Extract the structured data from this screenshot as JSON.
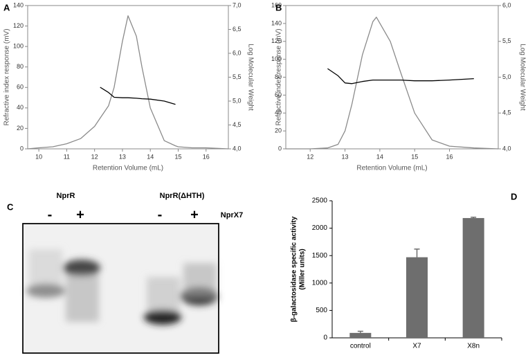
{
  "chart_data": [
    {
      "type": "line",
      "panel": "A",
      "x_label": "Retention Volume (mL)",
      "y_label": "Refractive index response (mV)",
      "y2_label": "Log Molecular Weight",
      "x": [
        9.6,
        10,
        10.5,
        11,
        11.5,
        12,
        12.2,
        12.5,
        12.7,
        13,
        13.2,
        13.5,
        13.7,
        14,
        14.5,
        14.9,
        15,
        15.5,
        16,
        16.8
      ],
      "series": [
        {
          "color": "#8a8a8a",
          "values": [
            0,
            1,
            2,
            5,
            10,
            22,
            30,
            42,
            60,
            105,
            130,
            110,
            80,
            40,
            8,
            3,
            2,
            1,
            1,
            0
          ]
        },
        {
          "color": "#000000",
          "axis": "y2",
          "values": [
            null,
            null,
            null,
            null,
            null,
            null,
            5.29,
            5.18,
            5.08,
            5.07,
            5.07,
            5.06,
            5.05,
            5.04,
            5.0,
            4.93,
            null,
            null,
            null,
            null
          ]
        }
      ],
      "xlim": [
        9.6,
        16.8
      ],
      "xticks": [
        10,
        11,
        12,
        13,
        14,
        15,
        16
      ],
      "ylim": [
        0,
        140
      ],
      "yticks": [
        0,
        20,
        40,
        60,
        80,
        100,
        120,
        140
      ],
      "y2lim": [
        4.0,
        7.0
      ],
      "y2ticks": [
        {
          "value": 4.0,
          "label": "4,0"
        },
        {
          "value": 4.5,
          "label": "4,5"
        },
        {
          "value": 5.0,
          "label": "5,0"
        },
        {
          "value": 5.5,
          "label": "5,5"
        },
        {
          "value": 6.0,
          "label": "6,0"
        },
        {
          "value": 6.5,
          "label": "6,5"
        },
        {
          "value": 7.0,
          "label": "7,0"
        }
      ]
    },
    {
      "type": "line",
      "panel": "B",
      "x_label": "Retention Volume (mL)",
      "y_label": "Refractive index response (mV)",
      "y2_label": "Log Molecular Weight",
      "x": [
        11.3,
        12,
        12.5,
        12.8,
        13,
        13.2,
        13.5,
        13.8,
        13.9,
        14.3,
        14.6,
        15,
        15.5,
        16,
        16.7,
        17.4
      ],
      "series": [
        {
          "color": "#8a8a8a",
          "values": [
            0,
            0,
            1,
            5,
            20,
            50,
            105,
            142,
            147,
            120,
            85,
            40,
            10,
            3,
            1,
            0
          ]
        },
        {
          "color": "#000000",
          "axis": "y2",
          "values": [
            null,
            null,
            5.12,
            5.02,
            4.92,
            4.91,
            4.94,
            4.96,
            4.96,
            4.96,
            4.96,
            4.95,
            4.95,
            4.96,
            4.98,
            null
          ]
        }
      ],
      "xlim": [
        11.3,
        17.4
      ],
      "xticks": [
        12,
        13,
        14,
        15,
        16
      ],
      "ylim": [
        0,
        160
      ],
      "yticks": [
        0,
        20,
        40,
        60,
        80,
        100,
        120,
        140,
        160
      ],
      "y2lim": [
        4.0,
        6.0
      ],
      "y2ticks": [
        {
          "value": 4.0,
          "label": "4,0"
        },
        {
          "value": 4.5,
          "label": "4,5"
        },
        {
          "value": 5.0,
          "label": "5,0"
        },
        {
          "value": 5.5,
          "label": "5,5"
        },
        {
          "value": 6.0,
          "label": "6,0"
        }
      ]
    },
    {
      "type": "bar",
      "panel": "D",
      "y_label": [
        "β-galactosidase specific activity",
        "(Miller units)"
      ],
      "categories": [
        "control",
        "X7",
        "X8n"
      ],
      "values": [
        90,
        1470,
        2185
      ],
      "errors": [
        30,
        150,
        15
      ],
      "color": "#6e6e6e",
      "ylim": [
        0,
        2500
      ],
      "yticks": [
        0,
        500,
        1000,
        1500,
        2000,
        2500
      ]
    }
  ],
  "gel": {
    "panel": "C",
    "groups": [
      "NprR",
      "NprR(ΔHTH)"
    ],
    "lanes": [
      "-",
      "+",
      "-",
      "+"
    ],
    "ligand": "NprX7"
  }
}
